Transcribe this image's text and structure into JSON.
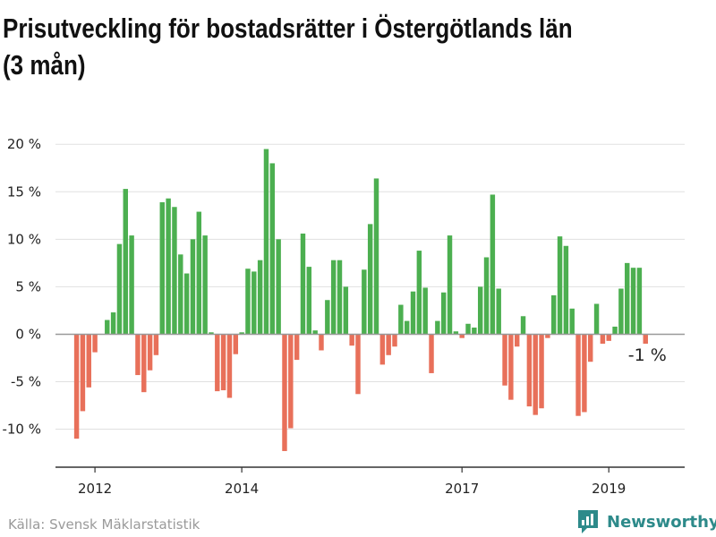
{
  "title": "Prisutveckling för bostadsrätter i Östergötlands län (3 mån)",
  "source": "Källa: Svensk Mäklarstatistik",
  "brand": {
    "name": "Newsworthy",
    "icon": "newsworthy-logo-icon",
    "color": "#2d8a8a"
  },
  "chart_data": {
    "type": "bar",
    "title": "Prisutveckling för bostadsrätter i Östergötlands län (3 mån)",
    "ylabel": "",
    "xlabel": "",
    "ylim": [
      -14,
      22
    ],
    "yticks": [
      -10,
      -5,
      0,
      5,
      10,
      15,
      20
    ],
    "ytick_labels": [
      "-10 %",
      "-5 %",
      "0 %",
      "5 %",
      "10 %",
      "15 %",
      "20 %"
    ],
    "xticks": [
      {
        "label": "2012",
        "month": "2012-01"
      },
      {
        "label": "2014",
        "month": "2014-01"
      },
      {
        "label": "2017",
        "month": "2017-01"
      },
      {
        "label": "2019",
        "month": "2019-01"
      }
    ],
    "grid": true,
    "colors": {
      "positive": "#4caf50",
      "negative": "#e8705a",
      "grid": "#e0e0e0",
      "baseline": "#999999"
    },
    "start_month": "2011-08",
    "values": [
      0,
      0,
      -11,
      -8.1,
      -5.6,
      -1.9,
      0,
      1.5,
      2.3,
      9.5,
      15.3,
      10.4,
      -4.3,
      -6.1,
      -3.8,
      -2.2,
      13.9,
      14.3,
      13.4,
      8.4,
      6.4,
      10,
      12.9,
      10.4,
      0.2,
      -6,
      -5.9,
      -6.7,
      -2.1,
      0.2,
      6.9,
      6.6,
      7.8,
      19.5,
      18,
      10,
      -12.3,
      -9.9,
      -2.7,
      10.6,
      7.1,
      0.4,
      -1.7,
      3.6,
      7.8,
      7.8,
      5,
      -1.2,
      -6.3,
      6.8,
      11.6,
      16.4,
      -3.2,
      -2.2,
      -1.3,
      3.1,
      1.4,
      4.5,
      8.8,
      4.9,
      -4.1,
      1.4,
      4.4,
      10.4,
      0.3,
      -0.4,
      1.1,
      0.7,
      5,
      8.1,
      14.7,
      4.8,
      -5.4,
      -6.9,
      -1.3,
      1.9,
      -7.6,
      -8.5,
      -7.8,
      -0.4,
      4.1,
      10.3,
      9.3,
      2.7,
      -8.6,
      -8.2,
      -2.9,
      3.2,
      -1,
      -0.7,
      0.8,
      4.8,
      7.5,
      7,
      7,
      -1
    ],
    "annotations": [
      {
        "month": "2019-07",
        "text": "-1 %"
      }
    ]
  }
}
